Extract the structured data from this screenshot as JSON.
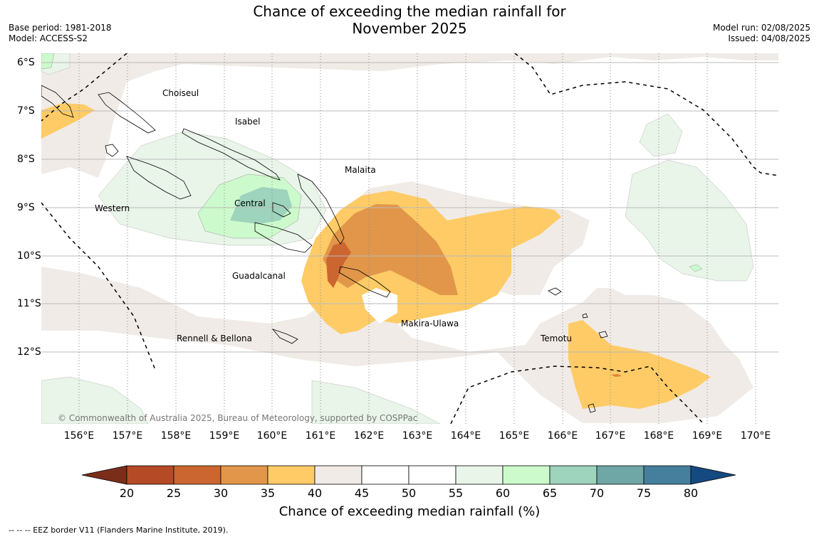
{
  "title_line1": "Chance of exceeding the median rainfall for",
  "title_line2": "November 2025",
  "meta_left": [
    "Base period: 1981-2018",
    "Model: ACCESS-S2"
  ],
  "meta_right": [
    "Model run: 02/08/2025",
    "Issued: 04/08/2025"
  ],
  "copyright": "© Commonwealth of Australia 2025, Bureau of Meteorology, supported by COSPPac",
  "footnote": "--  --  -- EEZ border V11 (Flanders Marine Institute, 2019).",
  "map": {
    "lon_labels": [
      "156°E",
      "157°E",
      "158°E",
      "159°E",
      "160°E",
      "161°E",
      "162°E",
      "163°E",
      "164°E",
      "165°E",
      "166°E",
      "167°E",
      "168°E",
      "169°E",
      "170°E"
    ],
    "lat_labels": [
      "6°S",
      "7°S",
      "8°S",
      "9°S",
      "10°S",
      "11°S",
      "12°S"
    ],
    "places": [
      "Choiseul",
      "Isabel",
      "Malaita",
      "Western",
      "Central",
      "Guadalcanal",
      "Makira-Ulawa",
      "Rennell & Bellona",
      "Temotu"
    ]
  },
  "colorbar": {
    "label": "Chance of exceeding median rainfall (%)",
    "ticks": [
      "20",
      "25",
      "30",
      "35",
      "40",
      "45",
      "50",
      "55",
      "60",
      "65",
      "70",
      "75",
      "80"
    ],
    "colors": [
      "#7a2e1a",
      "#b44a26",
      "#cc6630",
      "#e1964a",
      "#fecb66",
      "#f0ebe6",
      "#ffffff",
      "#ffffff",
      "#e8f5e8",
      "#ccfacc",
      "#9ed3bd",
      "#6fa6a6",
      "#467f9d",
      "#154a80"
    ]
  }
}
